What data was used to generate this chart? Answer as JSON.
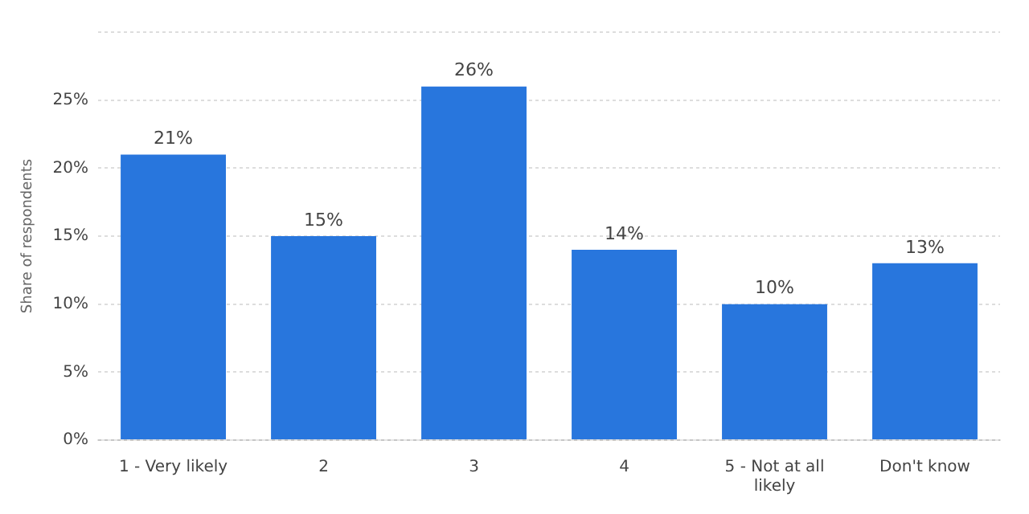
{
  "chart_data": {
    "type": "bar",
    "ylabel": "Share of respondents",
    "categories": [
      "1 - Very likely",
      "2",
      "3",
      "4",
      "5 - Not at all likely",
      "Don't know"
    ],
    "values": [
      21,
      15,
      26,
      14,
      10,
      13
    ],
    "value_labels": [
      "21%",
      "15%",
      "26%",
      "14%",
      "10%",
      "13%"
    ],
    "color": "#2876dd",
    "ylim": [
      0,
      30
    ],
    "yticks": [
      {
        "value": 0,
        "label": "0%"
      },
      {
        "value": 5,
        "label": "5%"
      },
      {
        "value": 10,
        "label": "10%"
      },
      {
        "value": 15,
        "label": "15%"
      },
      {
        "value": 20,
        "label": "20%"
      },
      {
        "value": 25,
        "label": "25%"
      },
      {
        "value": 30,
        "label": null
      }
    ],
    "grid": "y"
  }
}
